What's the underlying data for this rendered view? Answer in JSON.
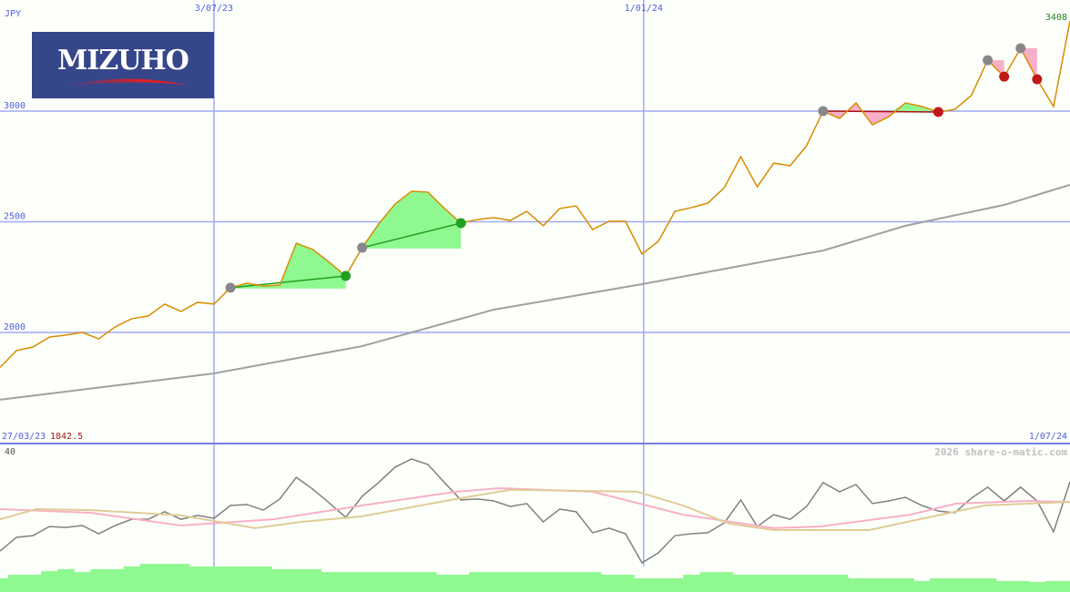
{
  "logo": {
    "text": "MIZUHO",
    "bg": "#36468a",
    "arc": "#d8202a"
  },
  "currency_label": "JPY",
  "watermark": "2026 share-o-matic.com",
  "start_label": {
    "date": "27/03/23",
    "price": "1842.5"
  },
  "end_date_label": "1/07/24",
  "last_price_label": "3408",
  "colors": {
    "grid": "#a0aaf4",
    "price": "#d88c00",
    "ma": "#a0a0a0",
    "buy": "#90f890",
    "sell": "#f8b0c8",
    "volume": "#90f890"
  },
  "chart_data": [
    {
      "type": "line",
      "title": "",
      "x_start": "27/03/23",
      "x_end": "1/07/24",
      "x_unit": "week",
      "xticks": [
        {
          "label": "3/07/23",
          "index": 13.0
        },
        {
          "label": "1/01/24",
          "index": 39.1
        }
      ],
      "yticks": [
        2000,
        2500,
        3000
      ],
      "ylim": [
        1700,
        3420
      ],
      "series": [
        {
          "key": "price",
          "values": [
            1842,
            1918,
            1934,
            1979,
            1988,
            2000,
            1971,
            2025,
            2062,
            2074,
            2128,
            2095,
            2136,
            2128,
            2202,
            2222,
            2210,
            2214,
            2403,
            2375,
            2317,
            2255,
            2383,
            2490,
            2580,
            2638,
            2634,
            2560,
            2494,
            2510,
            2519,
            2506,
            2547,
            2482,
            2560,
            2572,
            2465,
            2502,
            2502,
            2354,
            2412,
            2547,
            2564,
            2584,
            2654,
            2794,
            2658,
            2765,
            2753,
            2844,
            3000,
            2967,
            3037,
            2938,
            2975,
            3037,
            3021,
            2996,
            3008,
            3070,
            3230,
            3156,
            3284,
            3144,
            3021,
            3408
          ]
        },
        {
          "key": "moving-average",
          "points": [
            [
              0,
              1696
            ],
            [
              13,
              1815
            ],
            [
              22,
              1938
            ],
            [
              30,
              2103
            ],
            [
              39,
              2218
            ],
            [
              50,
              2370
            ],
            [
              55,
              2482
            ],
            [
              61,
              2576
            ],
            [
              65,
              2667
            ]
          ]
        }
      ],
      "signals": {
        "buy_zones": [
          [
            14,
            21
          ],
          [
            22,
            28
          ]
        ],
        "sell_zones": [
          [
            50,
            57
          ]
        ],
        "sell_triangles": [
          [
            60,
            61
          ],
          [
            62,
            63
          ]
        ],
        "markers": [
          {
            "i": 14,
            "type": "entry"
          },
          {
            "i": 21,
            "type": "buy"
          },
          {
            "i": 22,
            "type": "entry"
          },
          {
            "i": 28,
            "type": "buy"
          },
          {
            "i": 50,
            "type": "entry"
          },
          {
            "i": 57,
            "type": "sell"
          },
          {
            "i": 60,
            "type": "entry"
          },
          {
            "i": 61,
            "type": "sell"
          },
          {
            "i": 62,
            "type": "entry"
          },
          {
            "i": 63,
            "type": "sell"
          }
        ]
      }
    },
    {
      "type": "line",
      "title": "",
      "ylim": [
        0,
        40
      ],
      "yticks": [
        0,
        40
      ],
      "series": [
        {
          "key": "indicator",
          "color": "#808080",
          "values": [
            9.7,
            13.9,
            14.4,
            17.2,
            16.9,
            17.5,
            15,
            17.5,
            19.4,
            19.4,
            21.7,
            19.4,
            20.6,
            19.7,
            23.6,
            23.9,
            22.2,
            25.6,
            32.2,
            28.6,
            24.4,
            20,
            26.4,
            30.6,
            35.3,
            37.8,
            36.1,
            30.6,
            25.3,
            25.6,
            25,
            23.3,
            24.2,
            18.6,
            22.5,
            21.7,
            15.3,
            16.7,
            15,
            6.1,
            9.2,
            14.4,
            15,
            15.3,
            18.3,
            25.3,
            17.2,
            20.8,
            19.4,
            23.3,
            30.6,
            27.8,
            30,
            24.2,
            25,
            26.1,
            23.6,
            21.9,
            21.4,
            25.8,
            29.2,
            25,
            29.2,
            25,
            15.6,
            30.8
          ]
        },
        {
          "key": "signal-pink",
          "color": "#f8b0c8",
          "points": [
            [
              0,
              22.5
            ],
            [
              5.5,
              21.4
            ],
            [
              11,
              17.5
            ],
            [
              16.6,
              19.4
            ],
            [
              22,
              23.6
            ],
            [
              27.7,
              27.8
            ],
            [
              30.4,
              28.9
            ],
            [
              36,
              27.8
            ],
            [
              41.5,
              20.8
            ],
            [
              47,
              16.7
            ],
            [
              49.8,
              17.2
            ],
            [
              55.3,
              20.8
            ],
            [
              58.1,
              24.2
            ],
            [
              62.5,
              25
            ],
            [
              65,
              24.7
            ]
          ]
        },
        {
          "key": "signal-tan",
          "color": "#e0cc98",
          "points": [
            [
              0,
              19.4
            ],
            [
              2.2,
              22.5
            ],
            [
              5.5,
              22.2
            ],
            [
              11,
              20.6
            ],
            [
              15.5,
              16.7
            ],
            [
              18.3,
              18.6
            ],
            [
              22,
              20.3
            ],
            [
              27.7,
              25.6
            ],
            [
              31,
              28.4
            ],
            [
              38.7,
              27.8
            ],
            [
              41.5,
              23.6
            ],
            [
              44.3,
              18.1
            ],
            [
              47,
              16.1
            ],
            [
              52.8,
              16.1
            ],
            [
              56.4,
              20
            ],
            [
              59.8,
              23.6
            ],
            [
              65,
              24.7
            ]
          ]
        },
        {
          "key": "volume",
          "type": "bar",
          "color": "#90f890",
          "values": [
            1.4,
            2.5,
            2.5,
            3.6,
            4.2,
            3.3,
            4.2,
            4.2,
            5,
            5.8,
            5.8,
            5.8,
            5,
            5,
            5,
            5,
            5,
            4.2,
            4.2,
            4.2,
            3.3,
            3.3,
            3.3,
            3.3,
            3.3,
            3.3,
            3.3,
            2.5,
            2.5,
            3.3,
            3.3,
            3.3,
            3.3,
            3.3,
            3.3,
            3.3,
            3.3,
            2.5,
            2.5,
            1.4,
            1.4,
            1.4,
            2.5,
            3.3,
            3.3,
            2.5,
            2.5,
            2.5,
            2.5,
            2.5,
            2.5,
            2.5,
            1.4,
            1.4,
            1.4,
            1.4,
            0.6,
            1.4,
            1.4,
            1.4,
            1.4,
            0.6,
            0.6,
            0.3,
            0.6,
            0.6
          ]
        }
      ]
    }
  ]
}
